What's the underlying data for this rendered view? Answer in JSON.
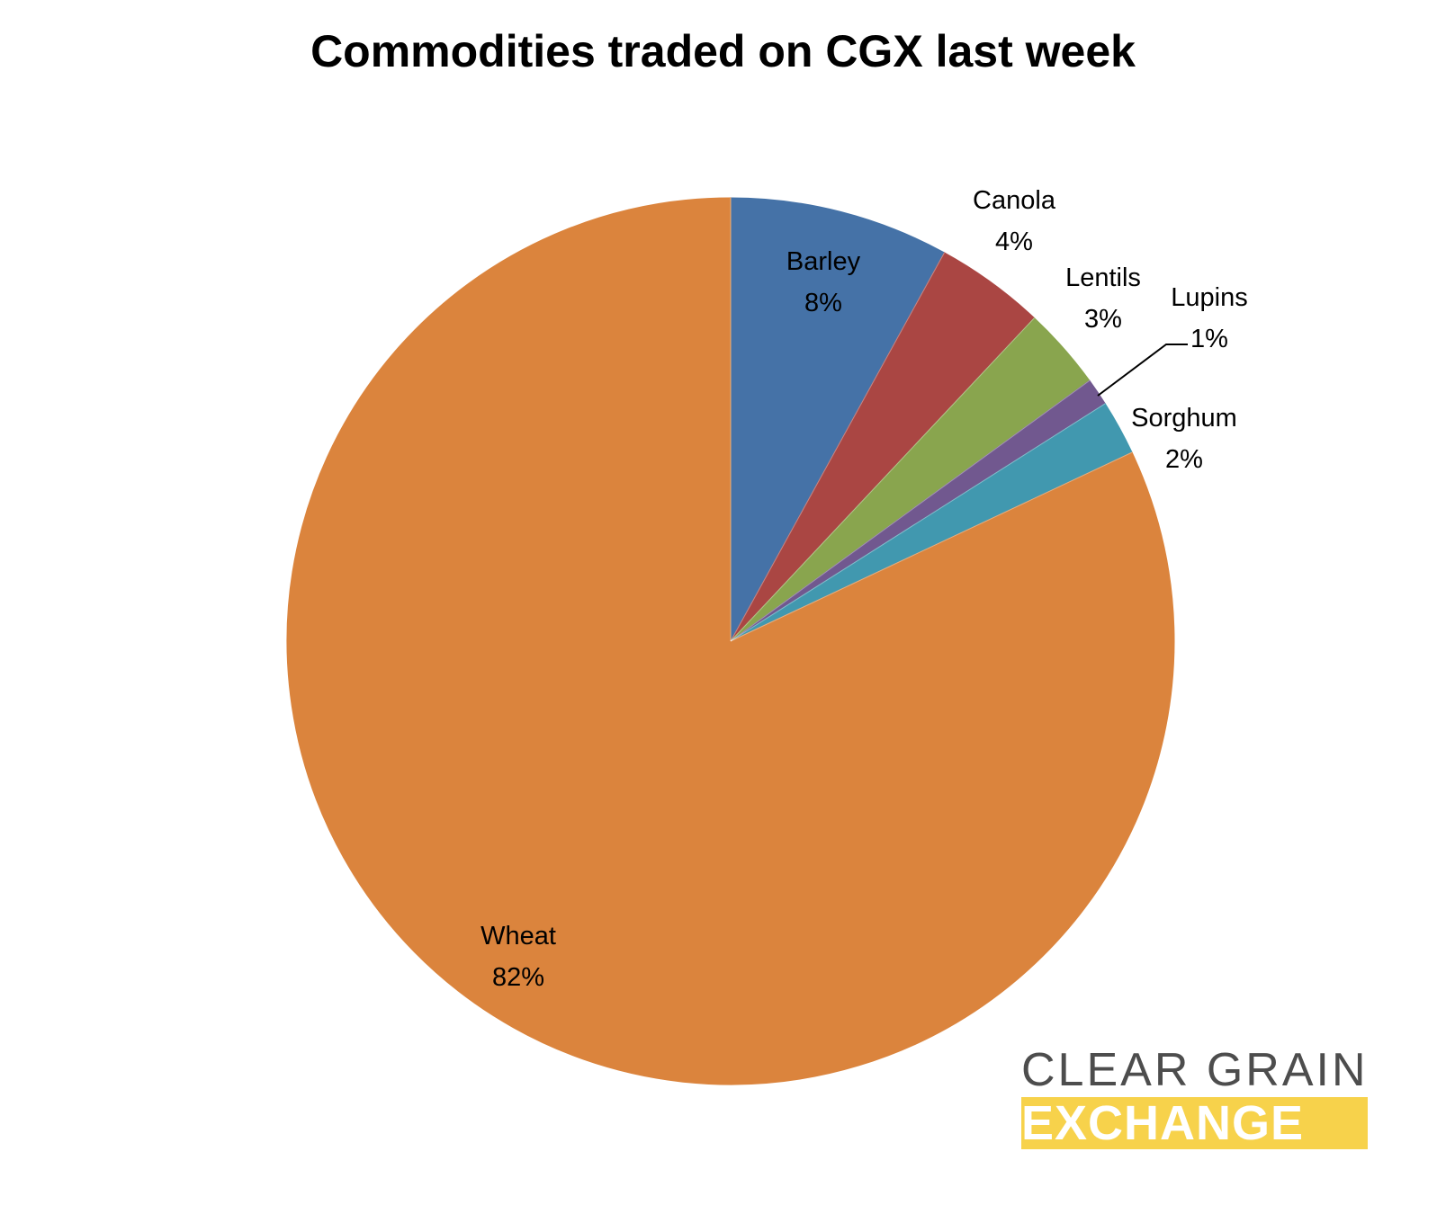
{
  "chart_data": {
    "type": "pie",
    "title": "Commodities traded on CGX last week",
    "start_angle_deg": 0,
    "direction": "clockwise",
    "slices": [
      {
        "name": "Barley",
        "value": 8,
        "label": "8%",
        "color": "#4572a7"
      },
      {
        "name": "Canola",
        "value": 4,
        "label": "4%",
        "color": "#aa4643"
      },
      {
        "name": "Lentils",
        "value": 3,
        "label": "3%",
        "color": "#89a54e"
      },
      {
        "name": "Lupins",
        "value": 1,
        "label": "1%",
        "color": "#71588f"
      },
      {
        "name": "Sorghum",
        "value": 2,
        "label": "2%",
        "color": "#4198af"
      },
      {
        "name": "Wheat",
        "value": 82,
        "label": "82%",
        "color": "#db843d"
      }
    ]
  },
  "logo": {
    "line1": "CLEAR GRAIN",
    "line2": "EXCHANGE",
    "line1_color": "#4d4d4d",
    "line2_bg": "#f7d24b"
  }
}
